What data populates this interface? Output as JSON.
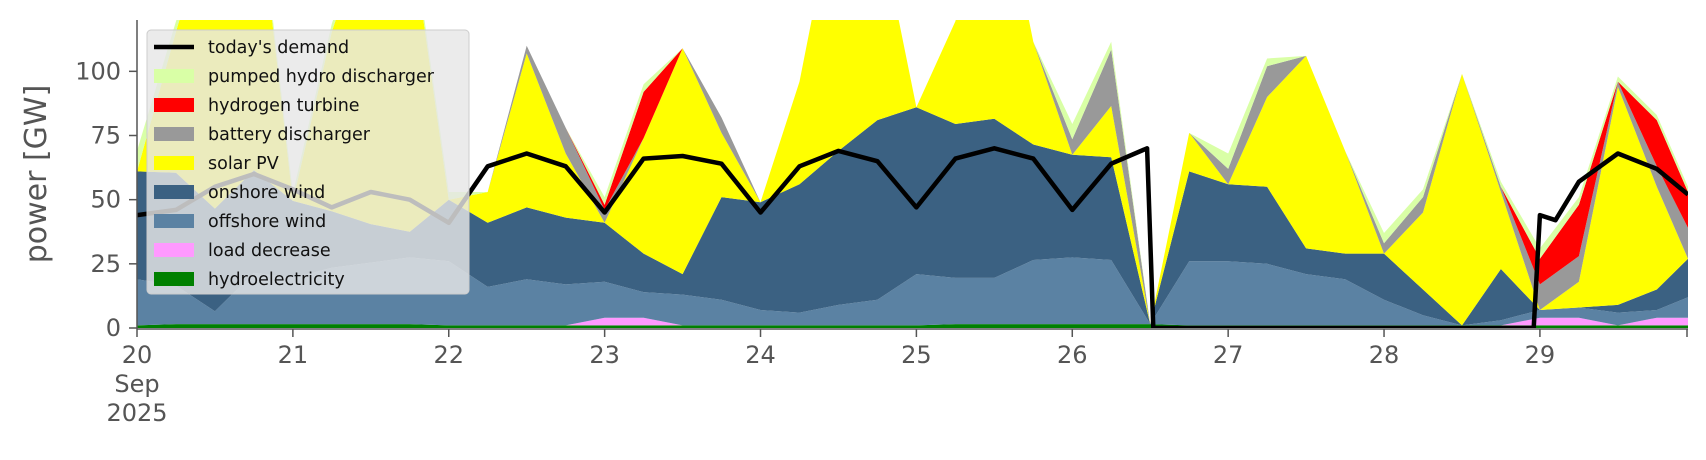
{
  "chart_data": {
    "type": "area",
    "ylabel": "power [GW]",
    "xlabel": "",
    "ylim": [
      0,
      120
    ],
    "xlim": [
      0,
      9.95
    ],
    "y_ticks": [
      0,
      25,
      50,
      75,
      100
    ],
    "x_ticks": [
      {
        "x": 0,
        "label": "20",
        "sub1": "Sep",
        "sub2": "2025"
      },
      {
        "x": 1,
        "label": "21"
      },
      {
        "x": 2,
        "label": "22"
      },
      {
        "x": 3,
        "label": "23"
      },
      {
        "x": 4,
        "label": "24"
      },
      {
        "x": 5,
        "label": "25"
      },
      {
        "x": 6,
        "label": "26"
      },
      {
        "x": 7,
        "label": "27"
      },
      {
        "x": 8,
        "label": "28"
      },
      {
        "x": 9,
        "label": "29"
      }
    ],
    "x_units": "days since 20 Sep 2025",
    "grid": false,
    "legend_position": "top-left",
    "x": [
      0,
      0.25,
      0.5,
      0.75,
      1,
      1.25,
      1.5,
      1.75,
      2,
      2.25,
      2.5,
      2.75,
      3,
      3.25,
      3.5,
      3.75,
      4,
      4.25,
      4.5,
      4.75,
      5,
      5.25,
      5.5,
      5.75,
      6,
      6.25,
      6.5,
      6.75,
      7,
      7.25,
      7.5,
      7.75,
      8,
      8.25,
      8.5,
      8.75,
      9,
      9.25,
      9.5,
      9.75,
      9.95
    ],
    "series": [
      {
        "name": "hydroelectricity",
        "color": "#008000",
        "values": [
          1,
          1.5,
          1.5,
          1.5,
          1.5,
          1.5,
          1.5,
          1.5,
          1,
          1,
          1,
          1,
          1,
          1,
          1,
          1,
          1,
          1,
          1,
          1,
          1,
          1.5,
          1.5,
          1.5,
          1.5,
          1.5,
          1.5,
          1,
          1,
          1,
          1,
          1,
          1,
          1,
          1,
          1,
          1,
          1,
          1,
          1,
          1
        ]
      },
      {
        "name": "load decrease",
        "color": "#ff99ff",
        "values": [
          0,
          0,
          0,
          0,
          0,
          0,
          0,
          0,
          0,
          0,
          0,
          0,
          3,
          3,
          0,
          0,
          0,
          0,
          0,
          0,
          0,
          0,
          0,
          0,
          0,
          0,
          0,
          0,
          0,
          0,
          0,
          0,
          0,
          0,
          0,
          0,
          3,
          3,
          0,
          3,
          3
        ]
      },
      {
        "name": "offshore wind",
        "color": "#5b82a3",
        "values": [
          18,
          15,
          5,
          20,
          18,
          22,
          24,
          26,
          25,
          15,
          18,
          16,
          14,
          10,
          12,
          10,
          6,
          5,
          8,
          10,
          20,
          18,
          18,
          25,
          26,
          25,
          0,
          25,
          25,
          24,
          20,
          18,
          10,
          4,
          0,
          2,
          3,
          4,
          5,
          3,
          8
        ]
      },
      {
        "name": "onshore wind",
        "color": "#3b6182",
        "values": [
          42,
          44,
          40,
          40,
          30,
          22,
          15,
          10,
          24,
          25,
          28,
          26,
          23,
          15,
          8,
          40,
          42,
          50,
          60,
          70,
          65,
          60,
          62,
          45,
          40,
          40,
          0,
          35,
          30,
          30,
          10,
          10,
          18,
          10,
          0,
          20,
          0,
          0,
          3,
          8,
          15
        ]
      },
      {
        "name": "solar PV",
        "color": "#ffff00",
        "values": [
          0,
          55,
          120,
          120,
          0,
          70,
          120,
          120,
          0,
          12,
          60,
          25,
          0,
          45,
          88,
          25,
          0,
          40,
          104,
          80,
          0,
          40,
          105,
          40,
          0,
          20,
          0,
          15,
          0,
          35,
          75,
          40,
          0,
          30,
          98,
          30,
          0,
          10,
          85,
          40,
          0
        ]
      },
      {
        "name": "battery discharger",
        "color": "#999999",
        "values": [
          0,
          0,
          0,
          0,
          0,
          0,
          0,
          0,
          0,
          0,
          3,
          10,
          5,
          0,
          0,
          6,
          0,
          0,
          0,
          0,
          0,
          0,
          0,
          0,
          6,
          22,
          0,
          0,
          6,
          12,
          0,
          0,
          4,
          6,
          0,
          2,
          10,
          10,
          2,
          8,
          12
        ]
      },
      {
        "name": "hydrogen turbine",
        "color": "#ff0000",
        "values": [
          0,
          0,
          0,
          0,
          0,
          0,
          0,
          0,
          0,
          0,
          0,
          0,
          2,
          18,
          0,
          0,
          0,
          0,
          0,
          0,
          0,
          0,
          0,
          0,
          0,
          0,
          0,
          0,
          0,
          0,
          0,
          0,
          0,
          0,
          0,
          0,
          10,
          20,
          0,
          18,
          14
        ]
      },
      {
        "name": "pumped hydro discharger",
        "color": "#d9ffa6",
        "values": [
          8,
          4,
          3,
          3,
          3,
          3,
          3,
          3,
          3,
          0,
          0,
          0,
          3,
          3,
          0,
          0,
          0,
          0,
          0,
          0,
          0,
          0,
          0,
          0,
          6,
          3,
          0,
          0,
          6,
          3,
          0,
          0,
          4,
          3,
          0,
          2,
          4,
          3,
          2,
          2,
          2
        ]
      }
    ],
    "demand": {
      "name": "today's demand",
      "color": "#000000",
      "points": [
        [
          0,
          44
        ],
        [
          0.25,
          46
        ],
        [
          0.5,
          55
        ],
        [
          0.75,
          60
        ],
        [
          1,
          54
        ],
        [
          1.25,
          47
        ],
        [
          1.5,
          53
        ],
        [
          1.75,
          50
        ],
        [
          2,
          41
        ],
        [
          2.25,
          63
        ],
        [
          2.5,
          68
        ],
        [
          2.75,
          63
        ],
        [
          3,
          45
        ],
        [
          3.25,
          66
        ],
        [
          3.5,
          67
        ],
        [
          3.75,
          64
        ],
        [
          4,
          45
        ],
        [
          4.25,
          63
        ],
        [
          4.5,
          69
        ],
        [
          4.75,
          65
        ],
        [
          5,
          47
        ],
        [
          5.25,
          66
        ],
        [
          5.5,
          70
        ],
        [
          5.75,
          66
        ],
        [
          6,
          46
        ],
        [
          6.25,
          64
        ],
        [
          6.48,
          70
        ],
        [
          6.52,
          0
        ],
        [
          7,
          0
        ],
        [
          8,
          0
        ],
        [
          8.96,
          0
        ],
        [
          9.0,
          44
        ],
        [
          9.1,
          42
        ],
        [
          9.25,
          57
        ],
        [
          9.5,
          68
        ],
        [
          9.75,
          62
        ],
        [
          9.95,
          52
        ]
      ]
    },
    "legend_order": [
      "today's demand",
      "pumped hydro discharger",
      "hydrogen turbine",
      "battery discharger",
      "solar PV",
      "onshore wind",
      "offshore wind",
      "load decrease",
      "hydroelectricity"
    ]
  }
}
